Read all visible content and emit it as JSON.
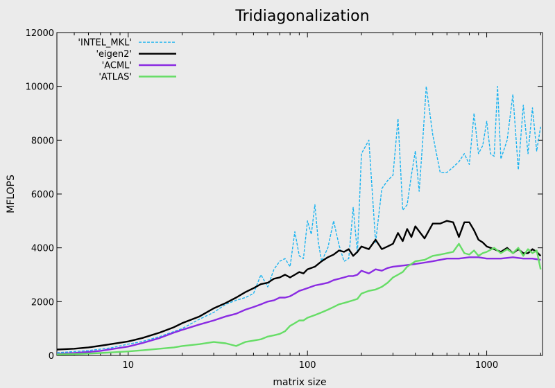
{
  "chart_data": {
    "type": "line",
    "title": "Tridiagonalization",
    "xlabel": "matrix size",
    "ylabel": "MFLOPS",
    "x_scale": "log",
    "xlim": [
      4,
      2048
    ],
    "ylim": [
      0,
      12000
    ],
    "x_ticks": [
      10,
      100,
      1000
    ],
    "x_tick_labels": [
      "10",
      "100",
      "1000"
    ],
    "y_ticks": [
      0,
      2000,
      4000,
      6000,
      8000,
      10000,
      12000
    ],
    "y_tick_labels": [
      "0",
      "2000",
      "4000",
      "6000",
      "8000",
      "10000",
      "12000"
    ],
    "legend_position": "top-left",
    "grid": false,
    "series": [
      {
        "name": "'INTEL_MKL'",
        "color": "#1ab3f0",
        "style": "dashed",
        "points": [
          [
            4,
            100
          ],
          [
            6,
            180
          ],
          [
            8,
            280
          ],
          [
            10,
            420
          ],
          [
            12,
            520
          ],
          [
            15,
            700
          ],
          [
            20,
            1000
          ],
          [
            25,
            1350
          ],
          [
            30,
            1600
          ],
          [
            35,
            1900
          ],
          [
            40,
            2050
          ],
          [
            45,
            2150
          ],
          [
            50,
            2300
          ],
          [
            55,
            3000
          ],
          [
            60,
            2550
          ],
          [
            65,
            3200
          ],
          [
            70,
            3500
          ],
          [
            75,
            3600
          ],
          [
            80,
            3300
          ],
          [
            85,
            4600
          ],
          [
            90,
            3700
          ],
          [
            95,
            3600
          ],
          [
            100,
            5000
          ],
          [
            105,
            4500
          ],
          [
            110,
            5600
          ],
          [
            115,
            4200
          ],
          [
            120,
            3500
          ],
          [
            130,
            4000
          ],
          [
            140,
            5000
          ],
          [
            150,
            4100
          ],
          [
            160,
            3500
          ],
          [
            170,
            3600
          ],
          [
            180,
            5500
          ],
          [
            190,
            3800
          ],
          [
            200,
            7500
          ],
          [
            220,
            8000
          ],
          [
            240,
            4200
          ],
          [
            260,
            6200
          ],
          [
            280,
            6500
          ],
          [
            300,
            6700
          ],
          [
            320,
            8800
          ],
          [
            340,
            5400
          ],
          [
            360,
            5600
          ],
          [
            380,
            6700
          ],
          [
            400,
            7600
          ],
          [
            420,
            6100
          ],
          [
            440,
            8000
          ],
          [
            460,
            10000
          ],
          [
            500,
            8200
          ],
          [
            550,
            6800
          ],
          [
            600,
            6800
          ],
          [
            650,
            7000
          ],
          [
            700,
            7200
          ],
          [
            750,
            7500
          ],
          [
            800,
            7100
          ],
          [
            850,
            9000
          ],
          [
            900,
            7500
          ],
          [
            950,
            7800
          ],
          [
            1000,
            8700
          ],
          [
            1050,
            7500
          ],
          [
            1100,
            7400
          ],
          [
            1150,
            10000
          ],
          [
            1200,
            7300
          ],
          [
            1300,
            8000
          ],
          [
            1400,
            9700
          ],
          [
            1500,
            6900
          ],
          [
            1600,
            9300
          ],
          [
            1700,
            7500
          ],
          [
            1800,
            9200
          ],
          [
            1900,
            7600
          ],
          [
            2000,
            8500
          ]
        ]
      },
      {
        "name": "'eigen2'",
        "color": "#000000",
        "style": "solid",
        "points": [
          [
            4,
            220
          ],
          [
            5,
            250
          ],
          [
            6,
            300
          ],
          [
            7,
            360
          ],
          [
            8,
            420
          ],
          [
            10,
            520
          ],
          [
            12,
            650
          ],
          [
            15,
            850
          ],
          [
            18,
            1050
          ],
          [
            20,
            1200
          ],
          [
            25,
            1450
          ],
          [
            30,
            1750
          ],
          [
            35,
            1950
          ],
          [
            40,
            2150
          ],
          [
            45,
            2350
          ],
          [
            50,
            2500
          ],
          [
            55,
            2650
          ],
          [
            60,
            2700
          ],
          [
            65,
            2850
          ],
          [
            70,
            2900
          ],
          [
            75,
            3000
          ],
          [
            80,
            2900
          ],
          [
            85,
            3000
          ],
          [
            90,
            3100
          ],
          [
            95,
            3050
          ],
          [
            100,
            3200
          ],
          [
            110,
            3300
          ],
          [
            120,
            3500
          ],
          [
            130,
            3650
          ],
          [
            140,
            3750
          ],
          [
            150,
            3900
          ],
          [
            160,
            3850
          ],
          [
            170,
            3950
          ],
          [
            180,
            3700
          ],
          [
            190,
            3850
          ],
          [
            200,
            4050
          ],
          [
            220,
            3950
          ],
          [
            240,
            4300
          ],
          [
            260,
            3950
          ],
          [
            280,
            4050
          ],
          [
            300,
            4150
          ],
          [
            320,
            4550
          ],
          [
            340,
            4250
          ],
          [
            360,
            4700
          ],
          [
            380,
            4400
          ],
          [
            400,
            4800
          ],
          [
            450,
            4350
          ],
          [
            500,
            4900
          ],
          [
            550,
            4900
          ],
          [
            600,
            5000
          ],
          [
            650,
            4950
          ],
          [
            700,
            4400
          ],
          [
            750,
            4950
          ],
          [
            800,
            4950
          ],
          [
            850,
            4650
          ],
          [
            900,
            4300
          ],
          [
            950,
            4200
          ],
          [
            1000,
            4050
          ],
          [
            1100,
            3950
          ],
          [
            1200,
            3850
          ],
          [
            1300,
            4000
          ],
          [
            1400,
            3800
          ],
          [
            1500,
            3950
          ],
          [
            1600,
            3800
          ],
          [
            1700,
            3800
          ],
          [
            1800,
            3950
          ],
          [
            1900,
            3850
          ],
          [
            2000,
            3700
          ]
        ]
      },
      {
        "name": "'ACML'",
        "color": "#8a2be2",
        "style": "solid",
        "points": [
          [
            4,
            60
          ],
          [
            5,
            90
          ],
          [
            6,
            130
          ],
          [
            7,
            170
          ],
          [
            8,
            230
          ],
          [
            10,
            330
          ],
          [
            12,
            460
          ],
          [
            15,
            650
          ],
          [
            18,
            850
          ],
          [
            20,
            950
          ],
          [
            25,
            1150
          ],
          [
            30,
            1300
          ],
          [
            35,
            1450
          ],
          [
            40,
            1550
          ],
          [
            45,
            1700
          ],
          [
            50,
            1800
          ],
          [
            55,
            1900
          ],
          [
            60,
            2000
          ],
          [
            65,
            2050
          ],
          [
            70,
            2150
          ],
          [
            75,
            2150
          ],
          [
            80,
            2200
          ],
          [
            85,
            2300
          ],
          [
            90,
            2400
          ],
          [
            95,
            2450
          ],
          [
            100,
            2500
          ],
          [
            110,
            2600
          ],
          [
            120,
            2650
          ],
          [
            130,
            2700
          ],
          [
            140,
            2800
          ],
          [
            150,
            2850
          ],
          [
            160,
            2900
          ],
          [
            170,
            2950
          ],
          [
            180,
            2950
          ],
          [
            190,
            3000
          ],
          [
            200,
            3150
          ],
          [
            220,
            3050
          ],
          [
            240,
            3200
          ],
          [
            260,
            3150
          ],
          [
            280,
            3250
          ],
          [
            300,
            3300
          ],
          [
            350,
            3350
          ],
          [
            400,
            3400
          ],
          [
            450,
            3450
          ],
          [
            500,
            3500
          ],
          [
            600,
            3600
          ],
          [
            700,
            3600
          ],
          [
            800,
            3650
          ],
          [
            900,
            3650
          ],
          [
            1000,
            3600
          ],
          [
            1200,
            3600
          ],
          [
            1400,
            3650
          ],
          [
            1600,
            3600
          ],
          [
            1800,
            3600
          ],
          [
            2000,
            3550
          ]
        ]
      },
      {
        "name": "'ATLAS'",
        "color": "#66dd66",
        "style": "solid",
        "points": [
          [
            4,
            40
          ],
          [
            5,
            50
          ],
          [
            6,
            70
          ],
          [
            7,
            90
          ],
          [
            8,
            110
          ],
          [
            10,
            150
          ],
          [
            12,
            190
          ],
          [
            15,
            250
          ],
          [
            18,
            300
          ],
          [
            20,
            350
          ],
          [
            25,
            420
          ],
          [
            30,
            500
          ],
          [
            35,
            450
          ],
          [
            40,
            350
          ],
          [
            45,
            500
          ],
          [
            50,
            550
          ],
          [
            55,
            600
          ],
          [
            60,
            700
          ],
          [
            65,
            750
          ],
          [
            70,
            800
          ],
          [
            75,
            900
          ],
          [
            80,
            1100
          ],
          [
            85,
            1200
          ],
          [
            90,
            1300
          ],
          [
            95,
            1300
          ],
          [
            100,
            1400
          ],
          [
            110,
            1500
          ],
          [
            120,
            1600
          ],
          [
            130,
            1700
          ],
          [
            140,
            1800
          ],
          [
            150,
            1900
          ],
          [
            160,
            1950
          ],
          [
            170,
            2000
          ],
          [
            180,
            2050
          ],
          [
            190,
            2100
          ],
          [
            200,
            2300
          ],
          [
            220,
            2400
          ],
          [
            240,
            2450
          ],
          [
            260,
            2550
          ],
          [
            280,
            2700
          ],
          [
            300,
            2900
          ],
          [
            320,
            3000
          ],
          [
            340,
            3100
          ],
          [
            360,
            3300
          ],
          [
            380,
            3400
          ],
          [
            400,
            3500
          ],
          [
            450,
            3550
          ],
          [
            500,
            3700
          ],
          [
            550,
            3750
          ],
          [
            600,
            3800
          ],
          [
            650,
            3850
          ],
          [
            700,
            4150
          ],
          [
            750,
            3800
          ],
          [
            800,
            3750
          ],
          [
            850,
            3900
          ],
          [
            900,
            3700
          ],
          [
            950,
            3800
          ],
          [
            1000,
            3850
          ],
          [
            1100,
            4000
          ],
          [
            1200,
            3800
          ],
          [
            1300,
            3950
          ],
          [
            1400,
            3800
          ],
          [
            1500,
            4000
          ],
          [
            1600,
            3700
          ],
          [
            1700,
            3950
          ],
          [
            1800,
            3800
          ],
          [
            1900,
            3900
          ],
          [
            2000,
            3200
          ]
        ]
      }
    ]
  }
}
